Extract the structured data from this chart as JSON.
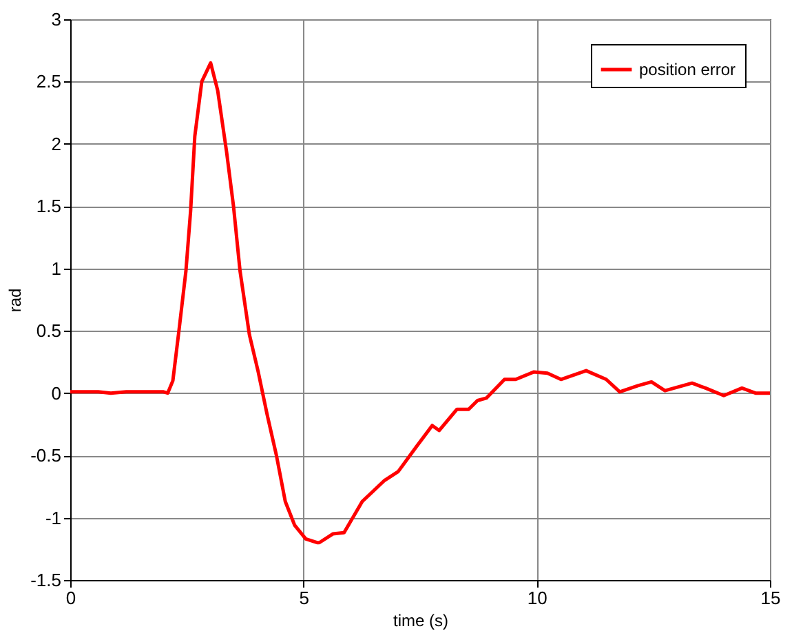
{
  "chart_data": {
    "type": "line",
    "xlabel": "time (s)",
    "ylabel": "rad",
    "series": [
      {
        "name": "position error",
        "color": "#ff0000",
        "x": [
          0,
          0.6,
          0.87,
          1.2,
          2.0,
          2.09,
          2.2,
          2.33,
          2.48,
          2.58,
          2.67,
          2.82,
          3.01,
          3.16,
          3.35,
          3.5,
          3.64,
          3.84,
          4.03,
          4.22,
          4.42,
          4.61,
          4.81,
          5.05,
          5.29,
          5.34,
          5.63,
          5.87,
          6.26,
          6.74,
          7.03,
          7.42,
          7.76,
          7.91,
          8.29,
          8.54,
          8.73,
          8.92,
          9.31,
          9.55,
          9.94,
          10.23,
          10.52,
          11.06,
          11.49,
          11.78,
          12.17,
          12.46,
          12.75,
          13.33,
          13.62,
          14.01,
          14.4,
          14.69,
          15
        ],
        "values": [
          0.01,
          0.01,
          0,
          0.01,
          0.01,
          0,
          0.1,
          0.5,
          0.98,
          1.46,
          2.06,
          2.5,
          2.65,
          2.43,
          1.94,
          1.5,
          0.98,
          0.47,
          0.17,
          -0.17,
          -0.5,
          -0.87,
          -1.06,
          -1.17,
          -1.2,
          -1.2,
          -1.13,
          -1.12,
          -0.87,
          -0.7,
          -0.63,
          -0.43,
          -0.26,
          -0.3,
          -0.13,
          -0.13,
          -0.06,
          -0.04,
          0.11,
          0.11,
          0.17,
          0.16,
          0.11,
          0.18,
          0.11,
          0.01,
          0.06,
          0.09,
          0.02,
          0.08,
          0.04,
          -0.02,
          0.04,
          0,
          0
        ]
      }
    ],
    "xlim": [
      0,
      15
    ],
    "xticks": [
      0,
      5,
      10,
      15
    ],
    "ylim": [
      -1.5,
      3
    ],
    "yticks": [
      -1.5,
      -1,
      -0.5,
      0,
      0.5,
      1,
      1.5,
      2,
      2.5,
      3
    ],
    "grid": true,
    "legend": "top right",
    "marker": "none",
    "line_style": "solid"
  }
}
